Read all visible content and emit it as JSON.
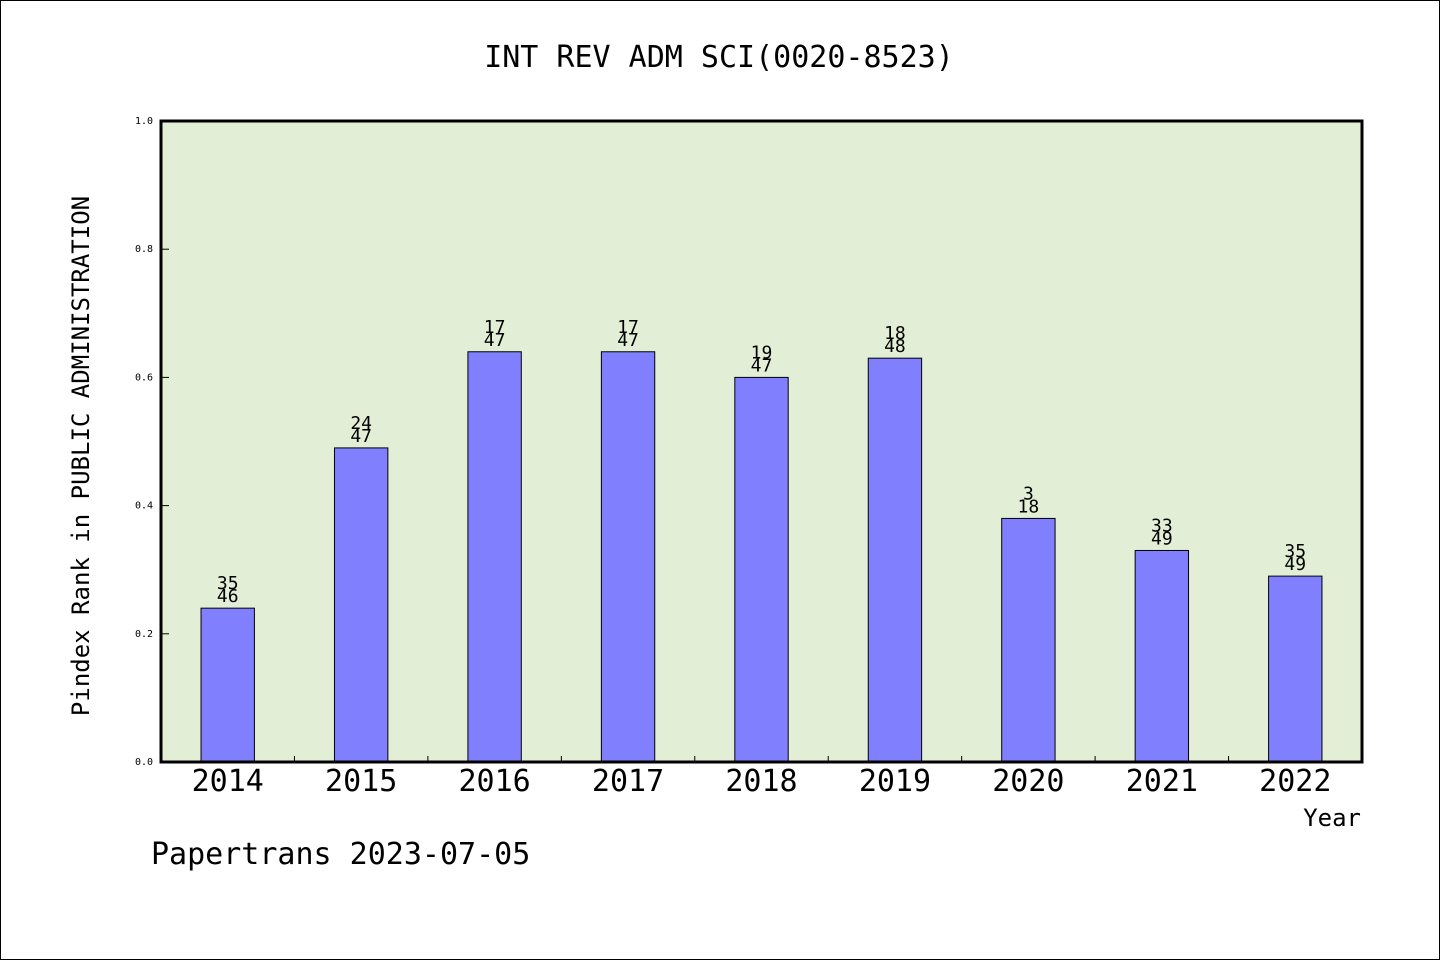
{
  "chart_data": {
    "type": "bar",
    "title": "INT REV ADM SCI(0020-8523)",
    "xlabel": "Year",
    "ylabel": "Pindex Rank in PUBLIC ADMINISTRATION",
    "ylim": [
      0.0,
      1.0
    ],
    "yticks": [
      "0.0",
      "0.2",
      "0.4",
      "0.6",
      "0.8",
      "1.0"
    ],
    "categories": [
      "2014",
      "2015",
      "2016",
      "2017",
      "2018",
      "2019",
      "2020",
      "2021",
      "2022"
    ],
    "values": [
      0.24,
      0.49,
      0.64,
      0.64,
      0.6,
      0.63,
      0.38,
      0.33,
      0.29
    ],
    "rank": [
      "35",
      "24",
      "17",
      "17",
      "19",
      "18",
      "3",
      "33",
      "35"
    ],
    "total": [
      "46",
      "47",
      "47",
      "47",
      "47",
      "48",
      "18",
      "49",
      "49"
    ],
    "grid": false,
    "colors": {
      "plot_bg": "#e2efd6",
      "bar": "#8080ff",
      "bar_edge": "#000000"
    }
  },
  "footer": "Papertrans 2023-07-05"
}
